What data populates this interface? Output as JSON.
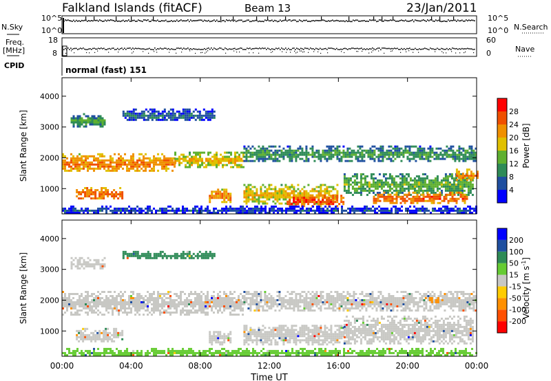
{
  "header": {
    "title": "Falkland Islands (fitACF)",
    "beam": "Beam 13",
    "date": "23/Jan/2011"
  },
  "strips": {
    "nsky_label": "N.Sky",
    "nsearch_label": "N.Search",
    "freq_label_line1": "Freq.",
    "freq_label_line2": "[MHz]",
    "nave_label": "Nave",
    "cpid_label": "CPID",
    "cpid_value": "normal (fast) 151",
    "noise_ticks_left": [
      "10^5",
      "10^0"
    ],
    "noise_ticks_right": [
      "10^5",
      "10^0"
    ],
    "freq_ticks": [
      "18",
      "8"
    ],
    "nave_ticks": [
      "60",
      "0"
    ]
  },
  "colors": {
    "power": [
      "#0000ff",
      "#1f4fa0",
      "#2e8b57",
      "#5fb030",
      "#e0c000",
      "#f09000",
      "#f05000",
      "#ff0000"
    ],
    "velocity": [
      "#ff0000",
      "#ff5000",
      "#ff9000",
      "#ffcc00",
      "#c8c8c4",
      "#66cc33",
      "#2e8b57",
      "#1f4fa0",
      "#0000ff"
    ]
  },
  "chart_data": [
    {
      "type": "heatmap",
      "title": "",
      "quantity": "Power",
      "xlabel": "",
      "ylabel": "Slant Range [km]",
      "xlim": [
        "00:00",
        "24:00"
      ],
      "ylim": [
        180,
        4600
      ],
      "x_ticks": [
        "00:00",
        "04:00",
        "08:00",
        "12:00",
        "16:00",
        "20:00",
        "00:00"
      ],
      "y_ticks": [
        "1000",
        "2000",
        "3000",
        "4000"
      ],
      "colorbar": {
        "label": "Power [dB]",
        "range": [
          0,
          32
        ],
        "ticks": [
          "4",
          "8",
          "12",
          "16",
          "20",
          "24",
          "28"
        ]
      },
      "echo_regions": [
        {
          "t_start_h": 0.0,
          "t_end_h": 6.5,
          "range_km": [
            1550,
            2150
          ],
          "power_db": 24
        },
        {
          "t_start_h": 6.5,
          "t_end_h": 10.5,
          "range_km": [
            1700,
            2200
          ],
          "power_db": 20
        },
        {
          "t_start_h": 10.5,
          "t_end_h": 24.0,
          "range_km": [
            1900,
            2400
          ],
          "power_db": 12
        },
        {
          "t_start_h": 0.8,
          "t_end_h": 3.5,
          "range_km": [
            650,
            1050
          ],
          "power_db": 26
        },
        {
          "t_start_h": 8.5,
          "t_end_h": 9.8,
          "range_km": [
            550,
            1000
          ],
          "power_db": 24
        },
        {
          "t_start_h": 10.5,
          "t_end_h": 16.0,
          "range_km": [
            500,
            1150
          ],
          "power_db": 20
        },
        {
          "t_start_h": 13.0,
          "t_end_h": 16.3,
          "range_km": [
            450,
            800
          ],
          "power_db": 28
        },
        {
          "t_start_h": 16.3,
          "t_end_h": 23.8,
          "range_km": [
            800,
            1500
          ],
          "power_db": 14
        },
        {
          "t_start_h": 18.0,
          "t_end_h": 23.5,
          "range_km": [
            550,
            900
          ],
          "power_db": 26
        },
        {
          "t_start_h": 22.8,
          "t_end_h": 24.0,
          "range_km": [
            1250,
            1650
          ],
          "power_db": 24
        },
        {
          "t_start_h": 0.5,
          "t_end_h": 2.5,
          "range_km": [
            3000,
            3450
          ],
          "power_db": 12
        },
        {
          "t_start_h": 3.5,
          "t_end_h": 8.8,
          "range_km": [
            3200,
            3600
          ],
          "power_db": 8
        },
        {
          "t_start_h": 0.0,
          "t_end_h": 24.0,
          "range_km": [
            200,
            450
          ],
          "power_db": 6
        }
      ]
    },
    {
      "type": "heatmap",
      "title": "",
      "quantity": "Velocity",
      "xlabel": "Time UT",
      "ylabel": "Slant Range [km]",
      "xlim": [
        "00:00",
        "24:00"
      ],
      "ylim": [
        180,
        4600
      ],
      "x_ticks": [
        "00:00",
        "04:00",
        "08:00",
        "12:00",
        "16:00",
        "20:00",
        "00:00"
      ],
      "y_ticks": [
        "1000",
        "2000",
        "3000",
        "4000"
      ],
      "colorbar": {
        "label": "Velocity [m s",
        "label_superscript": "-1",
        "label_close": "]",
        "range": [
          -250,
          250
        ],
        "ticks": [
          "200",
          "100",
          "50",
          "15",
          "-15",
          "-50",
          "-100",
          "-200"
        ]
      },
      "echo_regions": [
        {
          "t_start_h": 0.0,
          "t_end_h": 10.5,
          "range_km": [
            1550,
            2300
          ],
          "velocity_ms": 0
        },
        {
          "t_start_h": 10.5,
          "t_end_h": 24.0,
          "range_km": [
            1650,
            2300
          ],
          "velocity_ms": 0
        },
        {
          "t_start_h": 0.8,
          "t_end_h": 3.5,
          "range_km": [
            650,
            1100
          ],
          "velocity_ms": 0
        },
        {
          "t_start_h": 8.5,
          "t_end_h": 9.8,
          "range_km": [
            550,
            1000
          ],
          "velocity_ms": 0
        },
        {
          "t_start_h": 10.5,
          "t_end_h": 16.3,
          "range_km": [
            550,
            1200
          ],
          "velocity_ms": 0
        },
        {
          "t_start_h": 16.3,
          "t_end_h": 23.8,
          "range_km": [
            600,
            1500
          ],
          "velocity_ms": 0
        },
        {
          "t_start_h": 0.5,
          "t_end_h": 2.5,
          "range_km": [
            3000,
            3400
          ],
          "velocity_ms": 0
        },
        {
          "t_start_h": 3.5,
          "t_end_h": 8.8,
          "range_km": [
            3350,
            3600
          ],
          "velocity_ms": 80
        },
        {
          "t_start_h": 0.0,
          "t_end_h": 24.0,
          "range_km": [
            200,
            450
          ],
          "velocity_ms": 30
        },
        {
          "t_start_h": 21.0,
          "t_end_h": 22.0,
          "range_km": [
            1900,
            2100
          ],
          "velocity_ms": -60
        }
      ]
    }
  ]
}
